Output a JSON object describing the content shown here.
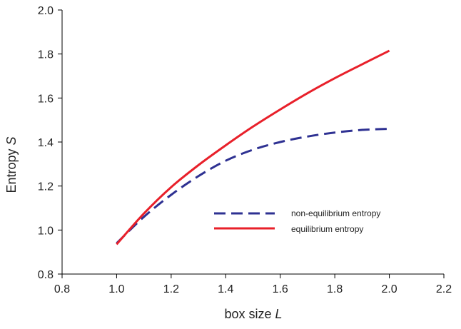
{
  "chart_data": {
    "type": "line",
    "xlabel": "box size",
    "xlabel_var": "L",
    "ylabel": "Entropy",
    "ylabel_var": "S",
    "xlim": [
      0.8,
      2.2
    ],
    "ylim": [
      0.8,
      2.0
    ],
    "xticks": [
      "0.8",
      "1.0",
      "1.2",
      "1.4",
      "1.6",
      "1.8",
      "2.0",
      "2.2"
    ],
    "yticks": [
      "0.8",
      "1.0",
      "1.2",
      "1.4",
      "1.6",
      "1.8",
      "2.0"
    ],
    "grid": false,
    "legend_position": "lower-right",
    "series": [
      {
        "name": "non-equilibrium entropy",
        "color": "#2e3192",
        "style": "dashed",
        "x": [
          1.0,
          1.1,
          1.2,
          1.3,
          1.4,
          1.5,
          1.6,
          1.7,
          1.8,
          1.9,
          2.0
        ],
        "y": [
          0.94,
          1.06,
          1.16,
          1.245,
          1.315,
          1.365,
          1.4,
          1.425,
          1.443,
          1.455,
          1.46
        ]
      },
      {
        "name": "equilibrium entropy",
        "color": "#e8202a",
        "style": "solid",
        "x": [
          1.0,
          1.1,
          1.2,
          1.3,
          1.4,
          1.5,
          1.6,
          1.7,
          1.8,
          1.9,
          2.0
        ],
        "y": [
          0.935,
          1.075,
          1.195,
          1.295,
          1.385,
          1.47,
          1.548,
          1.622,
          1.69,
          1.753,
          1.815
        ]
      }
    ]
  }
}
